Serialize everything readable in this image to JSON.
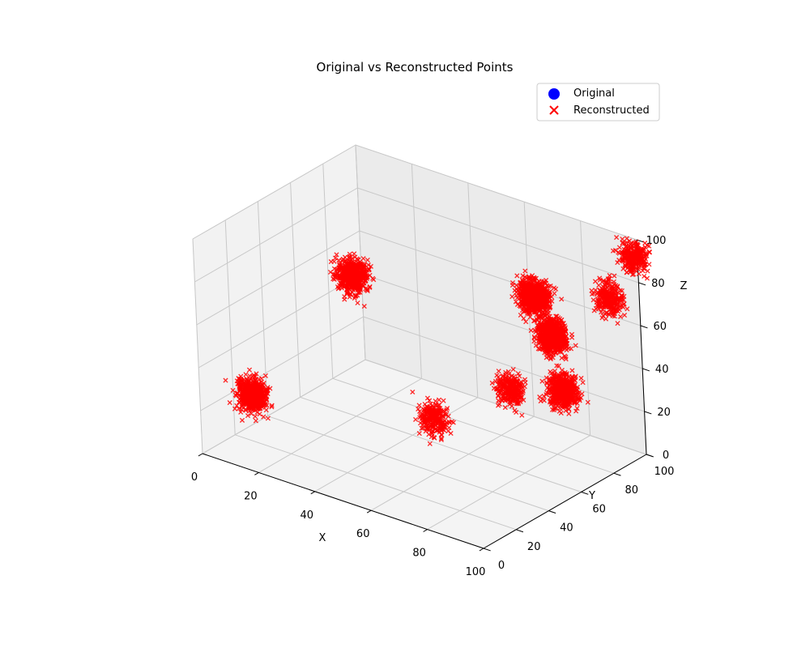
{
  "chart_data": {
    "type": "scatter",
    "projection": "3d",
    "title": "Original vs Reconstructed Points",
    "xlabel": "X",
    "ylabel": "Y",
    "zlabel": "Z",
    "xlim": [
      0,
      100
    ],
    "ylim": [
      0,
      100
    ],
    "zlim": [
      0,
      100
    ],
    "x_ticks": [
      "0",
      "20",
      "40",
      "60",
      "80",
      "100"
    ],
    "y_ticks": [
      "0",
      "20",
      "40",
      "60",
      "80",
      "100"
    ],
    "z_ticks": [
      "0",
      "20",
      "40",
      "60",
      "80",
      "100"
    ],
    "grid": true,
    "legend_position": "upper-right",
    "series": [
      {
        "name": "Original",
        "marker": "circle",
        "color": "#0000ff",
        "points": []
      },
      {
        "name": "Reconstructed",
        "marker": "x",
        "color": "#ff0000",
        "clusters": [
          {
            "x": 10,
            "y": 15,
            "z": 25,
            "count": 620
          },
          {
            "x": 12,
            "y": 75,
            "z": 55,
            "count": 620
          },
          {
            "x": 60,
            "y": 40,
            "z": 25,
            "count": 260
          },
          {
            "x": 70,
            "y": 70,
            "z": 30,
            "count": 260
          },
          {
            "x": 65,
            "y": 95,
            "z": 60,
            "count": 820
          },
          {
            "x": 80,
            "y": 80,
            "z": 55,
            "count": 820
          },
          {
            "x": 95,
            "y": 60,
            "z": 45,
            "count": 620
          },
          {
            "x": 95,
            "y": 90,
            "z": 75,
            "count": 260
          },
          {
            "x": 99,
            "y": 99,
            "z": 92,
            "count": 260
          }
        ]
      }
    ]
  }
}
